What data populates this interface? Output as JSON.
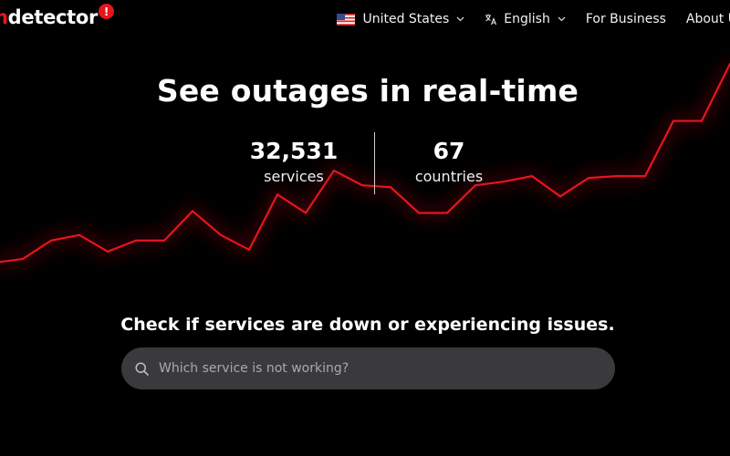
{
  "header": {
    "logo": {
      "prefix": "n",
      "main": "detector",
      "badge": "!"
    },
    "nav": {
      "country": "United States",
      "language": "English",
      "business": "For Business",
      "about": "About U"
    }
  },
  "hero": {
    "title": "See outages in real-time",
    "stats": {
      "services_value": "32,531",
      "services_label": "services",
      "countries_value": "67",
      "countries_label": "countries"
    }
  },
  "search": {
    "prompt": "Check if services are down or experiencing issues.",
    "placeholder": "Which service is not working?"
  },
  "colors": {
    "accent": "#e8141b",
    "background": "#000000",
    "search_bg": "#3a3a3c"
  },
  "chart_data": {
    "type": "line",
    "decorative": true,
    "values": [
      2,
      4,
      14,
      17,
      8,
      14,
      14,
      30,
      17,
      9,
      39,
      29,
      52,
      44,
      43,
      29,
      29,
      44,
      46,
      49,
      38,
      48,
      49,
      49,
      79,
      79,
      110
    ],
    "ylim": [
      0,
      110
    ]
  }
}
